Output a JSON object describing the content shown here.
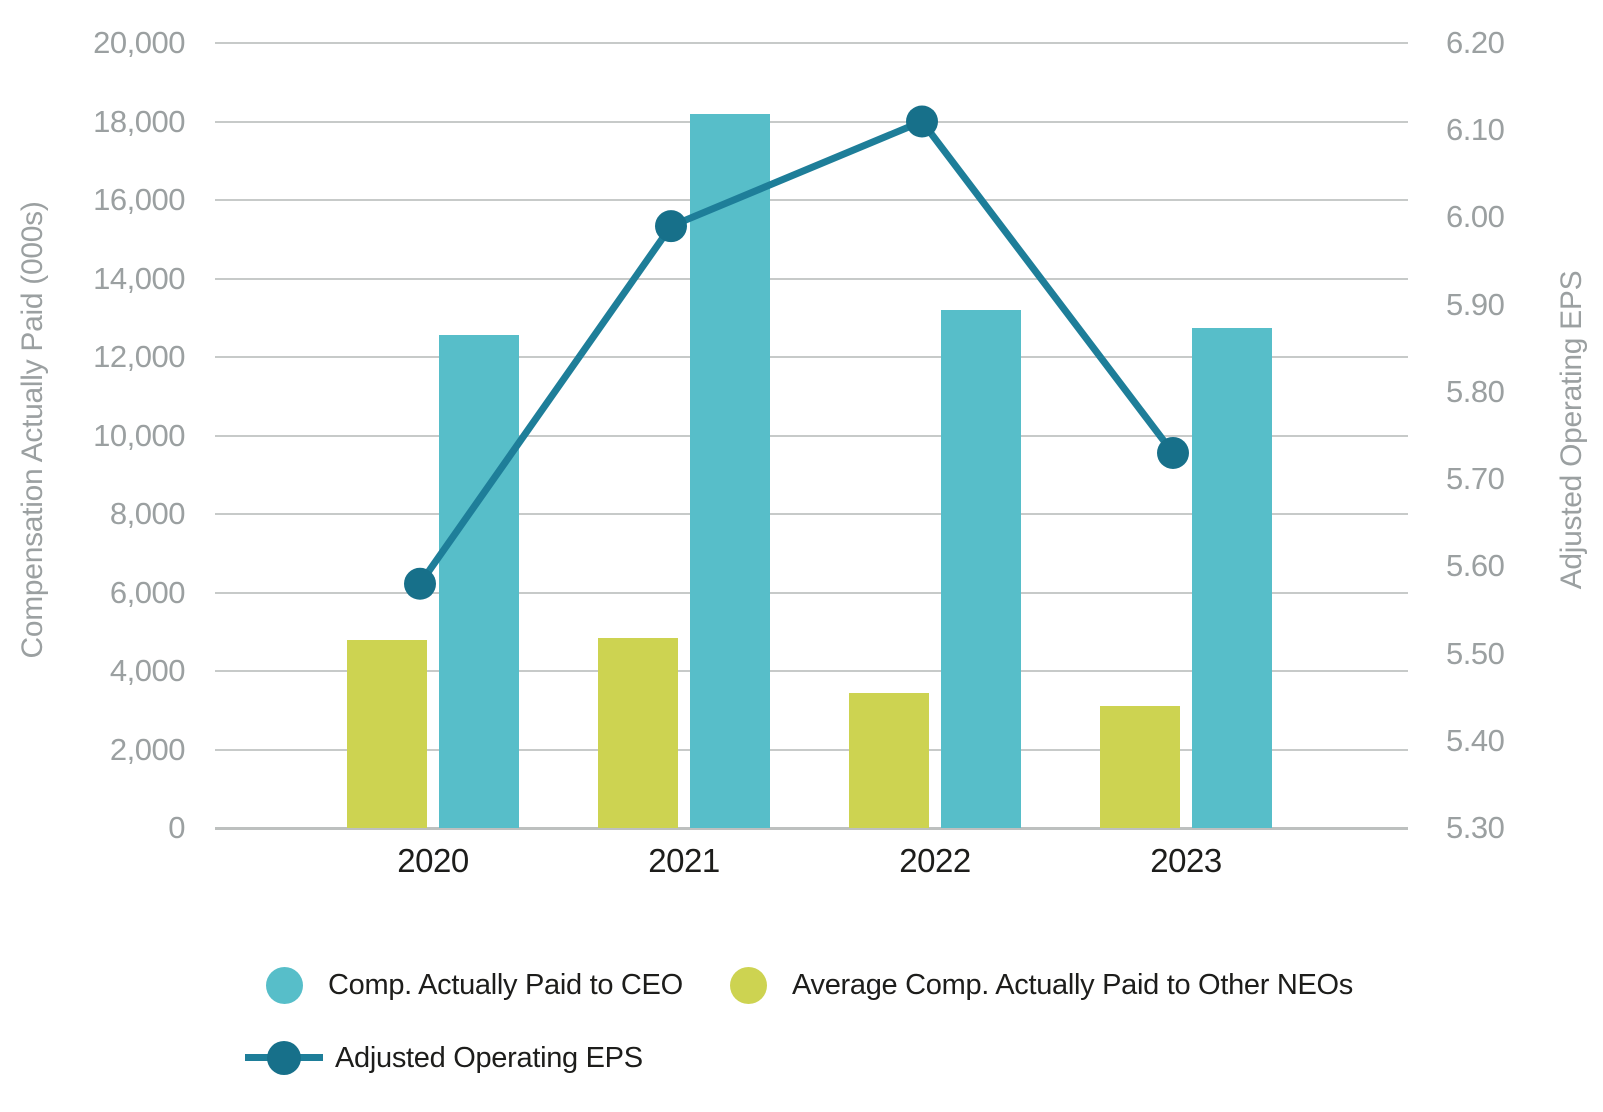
{
  "chart_data": {
    "type": "bar+line",
    "categories": [
      "2020",
      "2021",
      "2022",
      "2023"
    ],
    "series": [
      {
        "name": "Comp. Actually Paid to CEO",
        "type": "bar",
        "axis": "left",
        "color": "#57BEC9",
        "values": [
          12550,
          18200,
          13200,
          12750
        ]
      },
      {
        "name": "Average Comp. Actually Paid to Other NEOs",
        "type": "bar",
        "axis": "left",
        "color": "#CDD351",
        "values": [
          4800,
          4850,
          3450,
          3100
        ]
      },
      {
        "name": "Adjusted Operating EPS",
        "type": "line",
        "axis": "right",
        "color": "#1E7E99",
        "marker_color": "#17708A",
        "values": [
          5.58,
          5.99,
          6.11,
          5.73
        ]
      }
    ],
    "left_axis": {
      "label": "Compensation Actually Paid (000s)",
      "min": 0,
      "max": 20000,
      "tick_step": 2000,
      "ticks": [
        "0",
        "2,000",
        "4,000",
        "6,000",
        "8,000",
        "10,000",
        "12,000",
        "14,000",
        "16,000",
        "18,000",
        "20,000"
      ]
    },
    "right_axis": {
      "label": "Adjusted Operating EPS",
      "min": 5.3,
      "max": 6.2,
      "tick_step": 0.1,
      "ticks": [
        "5.30",
        "5.40",
        "5.50",
        "5.60",
        "5.70",
        "5.80",
        "5.90",
        "6.00",
        "6.10",
        "6.20"
      ]
    },
    "grid": "horizontal-only",
    "gridline_color": "#C7CAC9",
    "legend_position": "bottom-left",
    "text_colors": {
      "axis_ticks_and_titles": "#9BA0A1",
      "category_and_legend": "#1D1D1B"
    }
  },
  "legend": {
    "items": [
      {
        "label": "Comp. Actually Paid to CEO",
        "marker": "circle",
        "color": "#57BEC9"
      },
      {
        "label": "Average Comp. Actually Paid to Other NEOs",
        "marker": "circle",
        "color": "#CDD351"
      },
      {
        "label": "Adjusted Operating EPS",
        "marker": "circle-with-line",
        "color": "#17708A",
        "line_color": "#1E7E99"
      }
    ]
  }
}
